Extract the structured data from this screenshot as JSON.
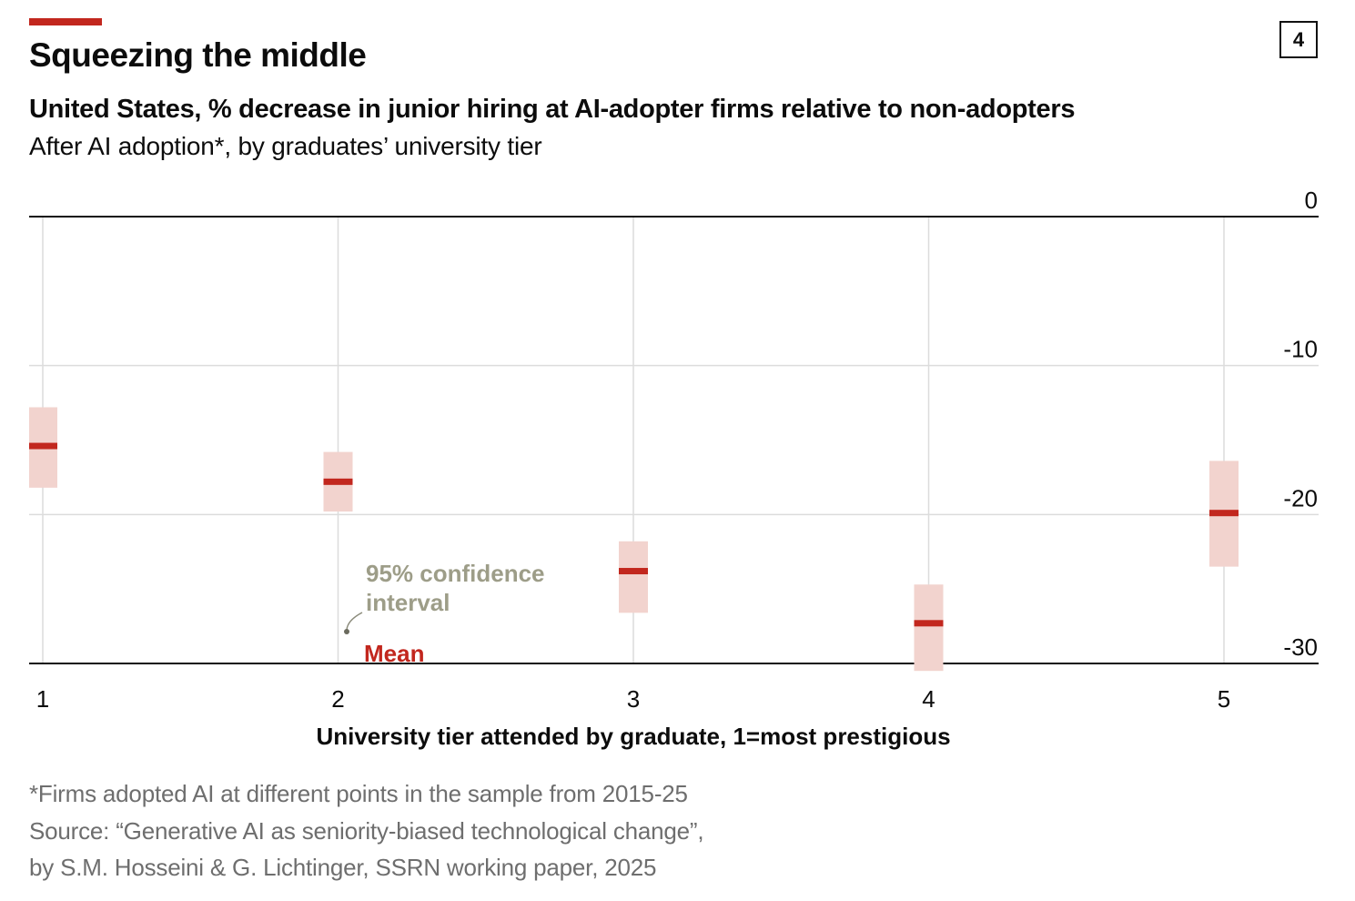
{
  "header": {
    "title": "Squeezing the middle",
    "chart_number": "4",
    "subtitle": "United States, % decrease in junior hiring at AI-adopter firms relative to non-adopters",
    "subtitle2": "After AI adoption*, by graduates’ university tier"
  },
  "chart_data": {
    "type": "scatter",
    "categories": [
      "1",
      "2",
      "3",
      "4",
      "5"
    ],
    "series": [
      {
        "name": "Mean",
        "values": [
          -15.4,
          -17.8,
          -23.8,
          -27.3,
          -19.9
        ]
      },
      {
        "name": "95% confidence interval low",
        "values": [
          -18.2,
          -19.8,
          -26.6,
          -30.5,
          -23.5
        ]
      },
      {
        "name": "95% confidence interval high",
        "values": [
          -12.8,
          -15.8,
          -21.8,
          -24.7,
          -16.4
        ]
      }
    ],
    "y_ticks": [
      "0",
      "-10",
      "-20",
      "-30"
    ],
    "ylim": [
      -30,
      0
    ],
    "xlabel": "University tier attended by graduate, 1=most prestigious",
    "ylabel": "",
    "annotations": {
      "ci_label_line1": "95% confidence",
      "ci_label_line2": "interval",
      "mean_label": "Mean"
    },
    "colors": {
      "mean": "#c2271e",
      "ci": "#f2d3ce",
      "grid": "#dcdcdc",
      "annotation": "#9d9d88"
    }
  },
  "footer": {
    "note": "*Firms adopted AI at different points in the sample from 2015-25",
    "source_line1": "Source: “Generative AI as seniority-biased technological change”,",
    "source_line2": "by S.M. Hosseini & G. Lichtinger, SSRN working paper, 2025"
  }
}
